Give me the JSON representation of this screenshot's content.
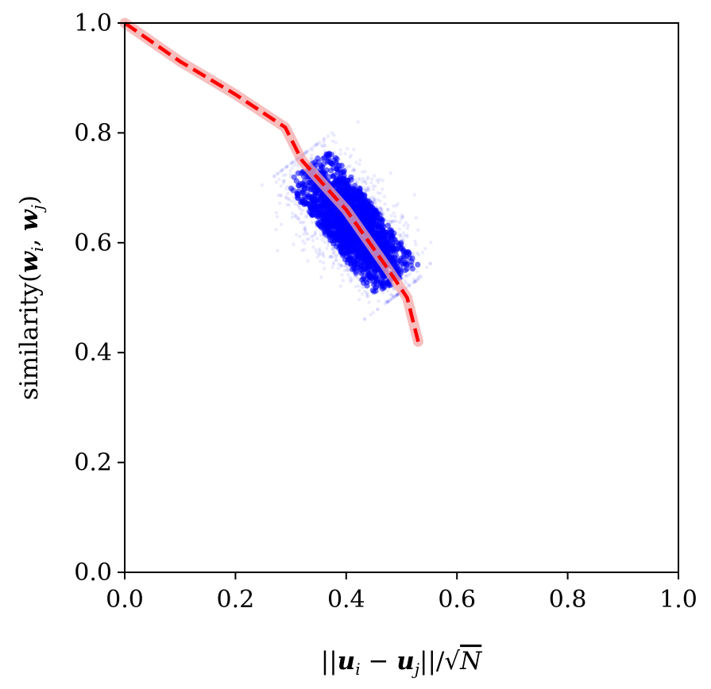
{
  "chart_data": {
    "type": "scatter",
    "title": "",
    "xlabel_parts": [
      "||",
      "u",
      "i",
      " − ",
      "u",
      "j",
      "||/√",
      "N"
    ],
    "ylabel_parts": [
      "similarity(",
      "w",
      "i",
      ", ",
      "w",
      "j",
      ")"
    ],
    "xlim": [
      0.0,
      1.0
    ],
    "ylim": [
      0.0,
      1.0
    ],
    "xticks": [
      "0.0",
      "0.2",
      "0.4",
      "0.6",
      "0.8",
      "1.0"
    ],
    "yticks": [
      "0.0",
      "0.2",
      "0.4",
      "0.6",
      "0.8",
      "1.0"
    ],
    "grid": false,
    "series": [
      {
        "kind": "scatter-cloud",
        "color": "#0000ff",
        "x_range": [
          0.33,
          0.49
        ],
        "y_range": [
          0.5,
          0.77
        ],
        "trend_x": [
          0.33,
          0.49
        ],
        "trend_y": [
          0.74,
          0.53
        ]
      },
      {
        "kind": "dashed-line",
        "color": "#ff0000",
        "band_color": "#f4a8a8",
        "x": [
          0.0,
          0.1,
          0.2,
          0.29,
          0.32,
          0.4,
          0.47,
          0.51,
          0.53
        ],
        "y": [
          1.0,
          0.93,
          0.87,
          0.81,
          0.75,
          0.66,
          0.56,
          0.5,
          0.42
        ]
      }
    ]
  }
}
